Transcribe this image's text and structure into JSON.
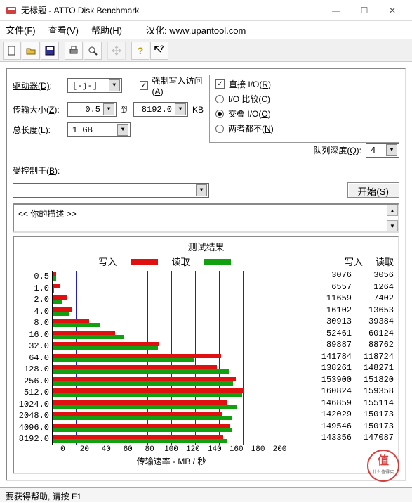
{
  "window": {
    "title": "无标题 - ATTO Disk Benchmark"
  },
  "menu": {
    "file": "文件(F)",
    "view": "查看(V)",
    "help": "帮助(H)",
    "hanhua_label": "汉化:",
    "hanhua_url": "www.upantool.com"
  },
  "form": {
    "drive_label": "驱动器(D):",
    "drive_value": "[-j-]",
    "xfer_label": "传输大小(Z):",
    "xfer_from": "0.5",
    "to_label": "到",
    "xfer_to": "8192.0",
    "kb": "KB",
    "length_label": "总长度(L):",
    "length_value": "1 GB",
    "force_write": "强制写入访问(A)",
    "force_write_checked": true,
    "direct_io": "直接 I/O(R)",
    "direct_io_checked": true,
    "io_compare": "I/O 比较(C)",
    "overlap_io": "交叠 I/O(O)",
    "overlap_checked": true,
    "neither": "两者都不(N)",
    "queue_label": "队列深度(Q):",
    "queue_value": "4",
    "controlled_label": "受控制于(B):",
    "start_btn": "开始(S)"
  },
  "desc": {
    "text": "<<  你的描述   >>"
  },
  "results": {
    "title": "测试结果",
    "legend_write": "写入",
    "legend_read": "读取",
    "write_color": "#e01010",
    "read_color": "#10a010",
    "grid_color": "#2020c0",
    "xaxis_label": "传输速率 - MB / 秒",
    "xlim": [
      0,
      200
    ],
    "xtick_step": 20,
    "xticks": [
      "0",
      "20",
      "40",
      "60",
      "80",
      "100",
      "120",
      "140",
      "160",
      "180",
      "200"
    ],
    "col_write": "写入",
    "col_read": "读取",
    "bar_max_kb": 200000,
    "rows": [
      {
        "size": "0.5",
        "write": 3076,
        "read": 3056
      },
      {
        "size": "1.0",
        "write": 6557,
        "read": 1264
      },
      {
        "size": "2.0",
        "write": 11659,
        "read": 7402
      },
      {
        "size": "4.0",
        "write": 16102,
        "read": 13653
      },
      {
        "size": "8.0",
        "write": 30913,
        "read": 39384
      },
      {
        "size": "16.0",
        "write": 52461,
        "read": 60124
      },
      {
        "size": "32.0",
        "write": 89887,
        "read": 88762
      },
      {
        "size": "64.0",
        "write": 141784,
        "read": 118724
      },
      {
        "size": "128.0",
        "write": 138261,
        "read": 148271
      },
      {
        "size": "256.0",
        "write": 153900,
        "read": 151820
      },
      {
        "size": "512.0",
        "write": 160824,
        "read": 159358
      },
      {
        "size": "1024.0",
        "write": 146859,
        "read": 155114
      },
      {
        "size": "2048.0",
        "write": 142029,
        "read": 150173
      },
      {
        "size": "4096.0",
        "write": 149546,
        "read": 150173
      },
      {
        "size": "8192.0",
        "write": 143356,
        "read": 147087
      }
    ]
  },
  "status": {
    "text": "要获得帮助, 请按 F1"
  },
  "watermark": {
    "text": "什么值得买"
  }
}
